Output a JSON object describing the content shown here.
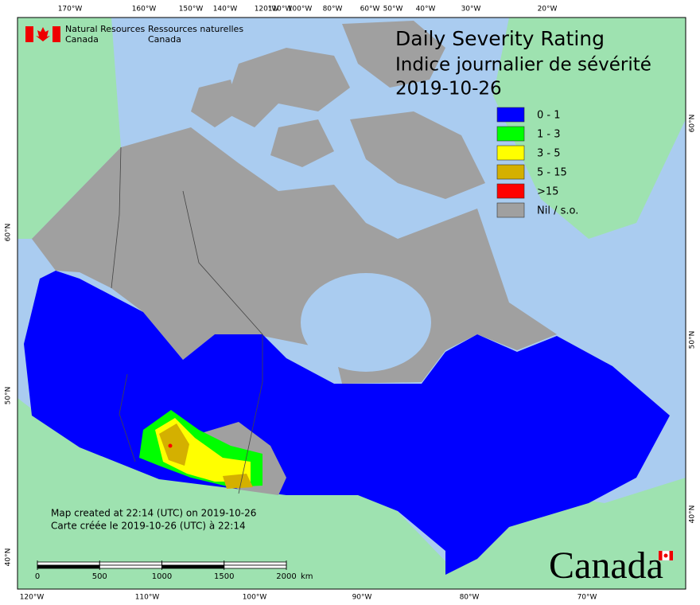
{
  "header": {
    "org_en": [
      "Natural Resources",
      "Canada"
    ],
    "org_fr": [
      "Ressources naturelles",
      "Canada"
    ]
  },
  "title": [
    "Daily Severity Rating",
    "Indice journalier de sévérité",
    "2019-10-26"
  ],
  "legend": [
    {
      "label": "0 - 1",
      "color": "#0000ff"
    },
    {
      "label": "1 - 3",
      "color": "#00ff00"
    },
    {
      "label": "3 - 5",
      "color": "#ffff00"
    },
    {
      "label": "5 - 15",
      "color": "#d4b000"
    },
    {
      "label": ">15",
      "color": "#ff0000"
    },
    {
      "label": "Nil / s.o.",
      "color": "#a0a0a0"
    }
  ],
  "top_labels": [
    "170°W",
    "160°W",
    "150°W",
    "140°W",
    "120°W",
    "110°W",
    "100°W",
    "80°W",
    "60°W",
    "50°W",
    "40°W",
    "30°W",
    "20°W"
  ],
  "bottom_labels": [
    "120°W",
    "110°W",
    "100°W",
    "90°W",
    "80°W",
    "70°W"
  ],
  "left_labels": [
    "60°N",
    "50°N",
    "40°N"
  ],
  "right_labels": [
    "60°N",
    "50°N",
    "40°N"
  ],
  "notes": [
    "Map created at 22:14 (UTC) on 2019-10-26",
    "Carte créée le 2019-10-26 (UTC) à 22:14"
  ],
  "scale_bar": {
    "ticks": [
      0,
      500,
      1000,
      1500,
      2000
    ],
    "unit": "km"
  },
  "wordmark": "Canada"
}
